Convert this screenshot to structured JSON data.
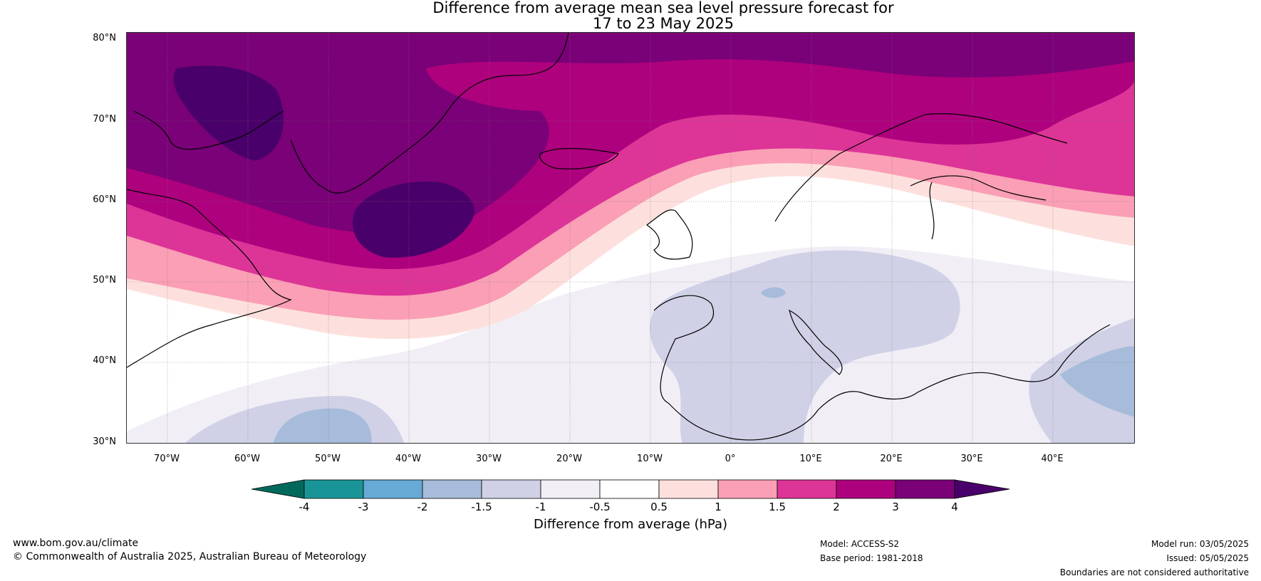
{
  "title": {
    "line1": "Difference from average mean sea level pressure forecast for",
    "line2": "17 to 23 May 2025"
  },
  "latitudes": [
    "80°N",
    "70°N",
    "60°N",
    "50°N",
    "40°N",
    "30°N"
  ],
  "longitudes": [
    "70°W",
    "60°W",
    "50°W",
    "40°W",
    "30°W",
    "20°W",
    "10°W",
    "0°",
    "10°E",
    "20°E",
    "30°E",
    "40°E"
  ],
  "colorbar": {
    "ticks": [
      "-4",
      "-3",
      "-2",
      "-1.5",
      "-1",
      "-0.5",
      "0.5",
      "1",
      "1.5",
      "2",
      "3",
      "4"
    ],
    "label": "Difference from average (hPa)",
    "colors": [
      "#00695c",
      "#1a9597",
      "#66aad5",
      "#a6bcda",
      "#d0d1e6",
      "#f1eef6",
      "#ffffff",
      "#fde0dd",
      "#fa9fb5",
      "#dd3497",
      "#ae017e",
      "#7a0177",
      "#49006a"
    ]
  },
  "footer": {
    "website": "www.bom.gov.au/climate",
    "copyright": "© Commonwealth of Australia 2025, Australian Bureau of Meteorology",
    "model": "Model: ACCESS-S2",
    "base_period": "Base period: 1981-2018",
    "model_run": "Model run: 03/05/2025",
    "issued": "Issued: 05/05/2025",
    "disclaimer": "Boundaries are not considered authoritative"
  }
}
